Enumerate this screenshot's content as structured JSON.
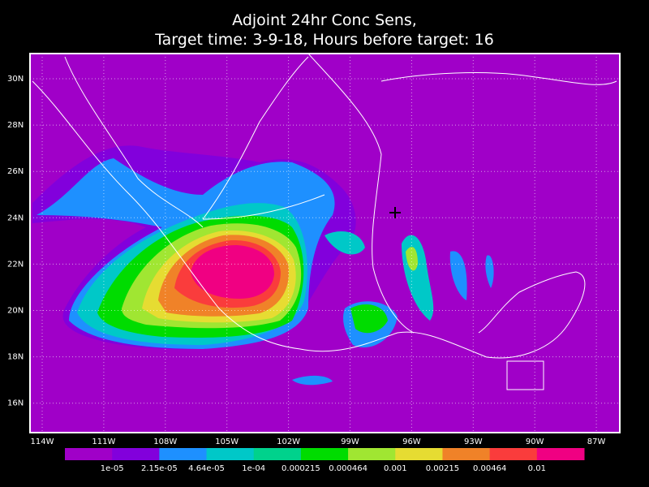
{
  "header": {
    "title": [
      "Adjoint 24hr Conc Sens,",
      "Target time: 3-9-18, Hours before target: 16"
    ]
  },
  "map": {
    "lat_labels": [
      "30N",
      "28N",
      "26N",
      "24N",
      "22N",
      "20N",
      "18N",
      "16N"
    ],
    "lon_labels": [
      "114W",
      "111W",
      "108W",
      "105W",
      "102W",
      "99W",
      "96W",
      "93W",
      "90W",
      "87W"
    ],
    "background": "#a000c8"
  },
  "colorbar": {
    "colors": [
      "#a000c8",
      "#8200dc",
      "#1e90ff",
      "#00c8c8",
      "#00d28c",
      "#00dc00",
      "#a0e632",
      "#e6dc32",
      "#f08228",
      "#fa3c3c",
      "#f00082"
    ],
    "labels": [
      "1e-05",
      "2.15e-05",
      "4.64e-05",
      "1e-04",
      "0.000215",
      "0.000464",
      "0.001",
      "0.00215",
      "0.00464",
      "0.01"
    ]
  }
}
